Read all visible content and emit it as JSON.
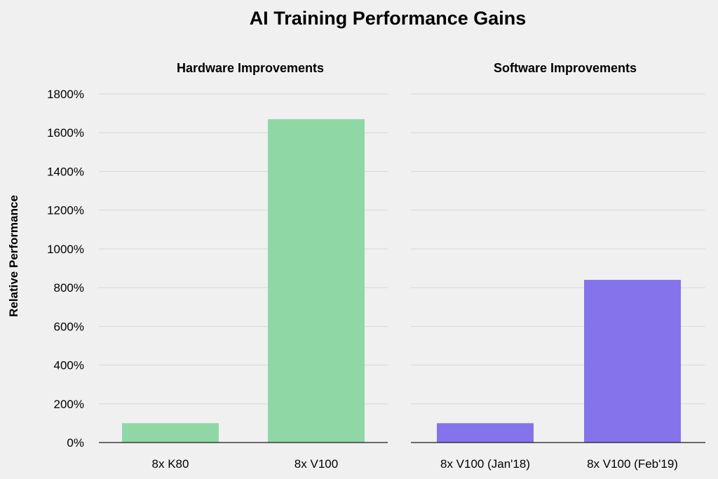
{
  "chart_data": {
    "type": "bar",
    "title": "AI Training Performance Gains",
    "ylabel": "Relative Performance",
    "ylim": [
      0,
      1800
    ],
    "yticks": [
      "0%",
      "200%",
      "400%",
      "600%",
      "800%",
      "1000%",
      "1200%",
      "1400%",
      "1600%",
      "1800%"
    ],
    "grid": true,
    "panels": [
      {
        "title": "Hardware Improvements",
        "categories": [
          "8x K80",
          "8x V100"
        ],
        "values": [
          100,
          1670
        ],
        "color": "#8fd8a6"
      },
      {
        "title": "Software Improvements",
        "categories": [
          "8x V100 (Jan'18)",
          "8x V100 (Feb'19)"
        ],
        "values": [
          100,
          840
        ],
        "color": "#8573ec"
      }
    ]
  }
}
